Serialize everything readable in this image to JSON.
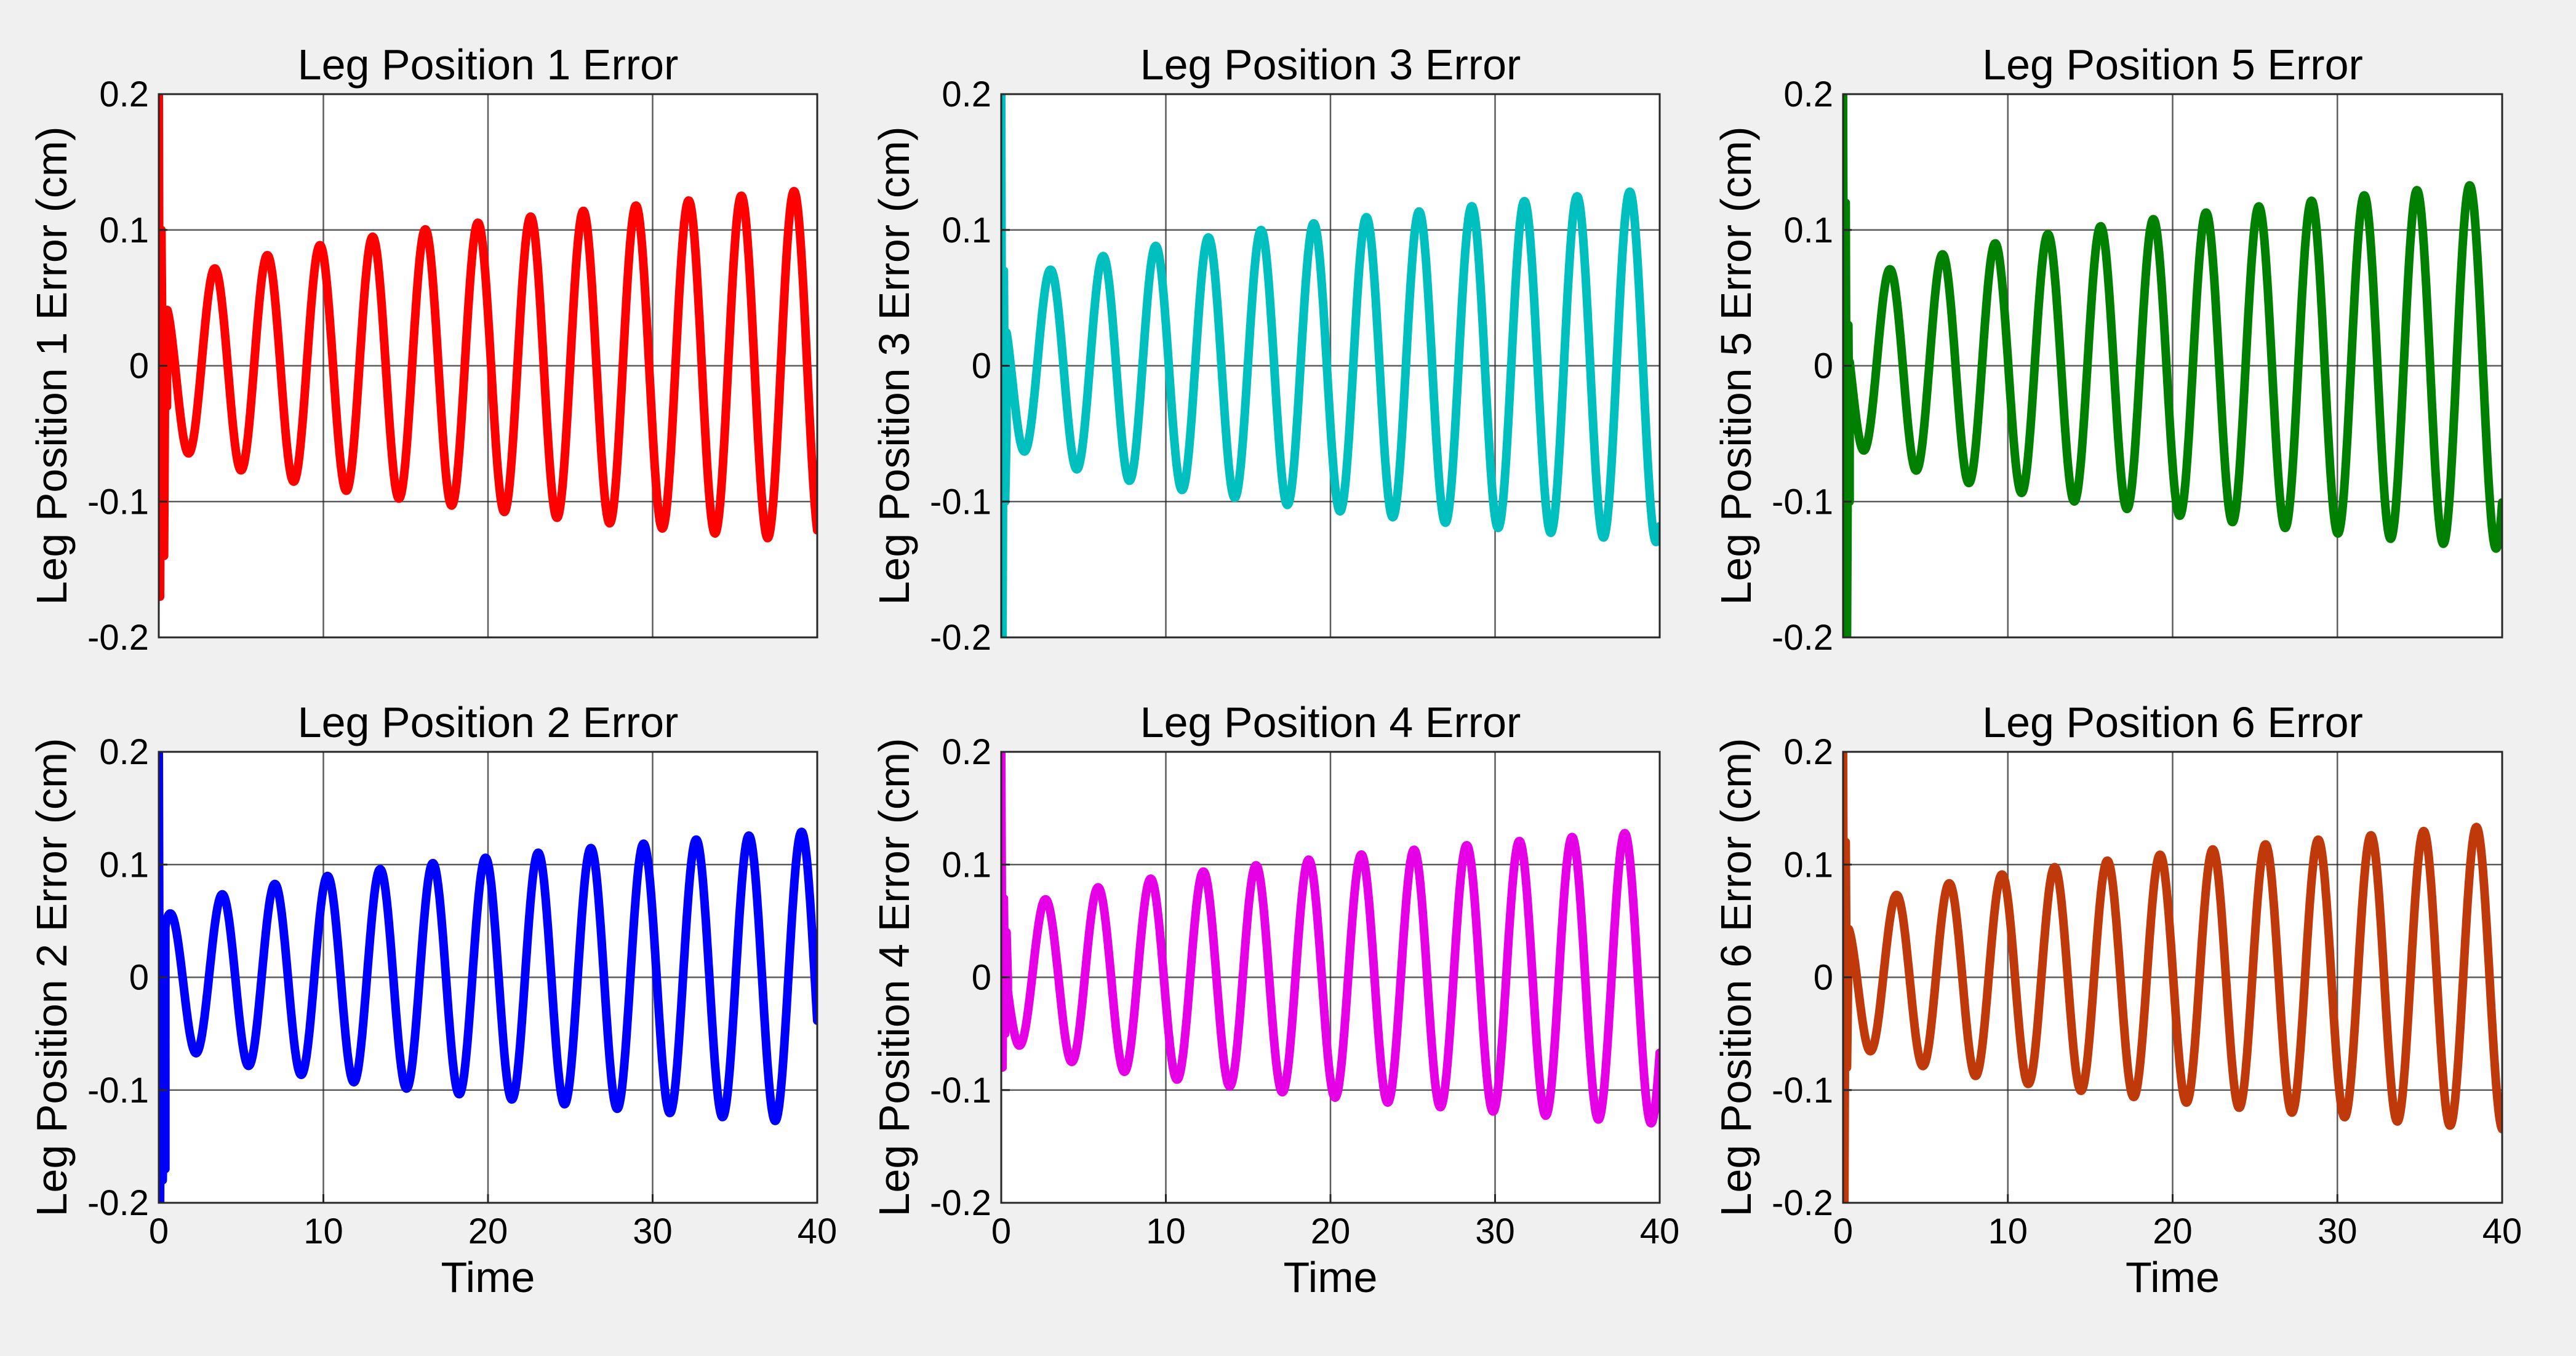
{
  "figure": {
    "background_color": "#f0f0f0",
    "axes_background_color": "#ffffff",
    "grid_color": "#262626",
    "axis_color": "#262626"
  },
  "chart_data": [
    {
      "type": "line",
      "title": "Leg Position 1 Error",
      "xlabel": "",
      "ylabel": "Leg Position 1 Error (cm)",
      "xlim": [
        0,
        40
      ],
      "ylim": [
        -0.2,
        0.2
      ],
      "xticks": [],
      "xtick_labels": [],
      "yticks": [
        -0.2,
        -0.1,
        0,
        0.1,
        0.2
      ],
      "ytick_labels": [
        "-0.2",
        "-0.1",
        "0",
        "0.1",
        "0.2"
      ],
      "grid": true,
      "color": "#ff0000",
      "series": [
        {
          "name": "Leg Position 1 Error",
          "transient": [
            [
              0,
              0.2
            ],
            [
              0.08,
              -0.17
            ],
            [
              0.16,
              0.1
            ],
            [
              0.24,
              -0.02
            ],
            [
              0.32,
              -0.14
            ],
            [
              0.4,
              0.03
            ],
            [
              0.5,
              -0.03
            ]
          ],
          "signal": {
            "start": 0.5,
            "end": 40,
            "center": 0,
            "amp_start": 0.05,
            "amp_end": 0.13,
            "period": 3.2,
            "phase": 1.2
          }
        }
      ]
    },
    {
      "type": "line",
      "title": "Leg Position 3 Error",
      "xlabel": "",
      "ylabel": "Leg Position 3 Error (cm)",
      "xlim": [
        0,
        40
      ],
      "ylim": [
        -0.2,
        0.2
      ],
      "xticks": [],
      "xtick_labels": [],
      "yticks": [
        -0.2,
        -0.1,
        0,
        0.1,
        0.2
      ],
      "ytick_labels": [
        "-0.2",
        "-0.1",
        "0",
        "0.1",
        "0.2"
      ],
      "grid": true,
      "color": "#00bfbf",
      "series": [
        {
          "name": "Leg Position 3 Error",
          "transient": [
            [
              0,
              0.2
            ],
            [
              0.08,
              -0.2
            ],
            [
              0.16,
              0.07
            ],
            [
              0.24,
              -0.1
            ],
            [
              0.32,
              -0.05
            ]
          ],
          "signal": {
            "start": 0.32,
            "end": 40,
            "center": 0,
            "amp_start": 0.05,
            "amp_end": 0.13,
            "period": 3.2,
            "phase": 2.0
          }
        }
      ]
    },
    {
      "type": "line",
      "title": "Leg Position 5 Error",
      "xlabel": "",
      "ylabel": "Leg Position 5 Error (cm)",
      "xlim": [
        0,
        40
      ],
      "ylim": [
        -0.2,
        0.2
      ],
      "xticks": [],
      "xtick_labels": [],
      "yticks": [
        -0.2,
        -0.1,
        0,
        0.1,
        0.2
      ],
      "ytick_labels": [
        "-0.2",
        "-0.1",
        "0",
        "0.1",
        "0.2"
      ],
      "grid": true,
      "color": "#008000",
      "series": [
        {
          "name": "Leg Position 5 Error",
          "transient": [
            [
              0,
              0.2
            ],
            [
              0.08,
              -0.2
            ],
            [
              0.16,
              0.12
            ],
            [
              0.24,
              -0.2
            ],
            [
              0.32,
              0.03
            ],
            [
              0.4,
              -0.1
            ]
          ],
          "signal": {
            "start": 0.4,
            "end": 40,
            "center": 0,
            "amp_start": 0.05,
            "amp_end": 0.135,
            "period": 3.2,
            "phase": 2.3
          }
        }
      ]
    },
    {
      "type": "line",
      "title": "Leg Position 2 Error",
      "xlabel": "Time",
      "ylabel": "Leg Position 2 Error (cm)",
      "xlim": [
        0,
        40
      ],
      "ylim": [
        -0.2,
        0.2
      ],
      "xticks": [
        0,
        10,
        20,
        30,
        40
      ],
      "xtick_labels": [
        "0",
        "10",
        "20",
        "30",
        "40"
      ],
      "yticks": [
        -0.2,
        -0.1,
        0,
        0.1,
        0.2
      ],
      "ytick_labels": [
        "-0.2",
        "-0.1",
        "0",
        "0.1",
        "0.2"
      ],
      "grid": true,
      "color": "#0000ff",
      "series": [
        {
          "name": "Leg Position 2 Error",
          "transient": [
            [
              0,
              0.2
            ],
            [
              0.08,
              -0.2
            ],
            [
              0.16,
              0.02
            ],
            [
              0.24,
              -0.18
            ],
            [
              0.32,
              -0.12
            ],
            [
              0.4,
              -0.17
            ]
          ],
          "signal": {
            "start": 0.4,
            "end": 40,
            "center": 0,
            "amp_start": 0.05,
            "amp_end": 0.13,
            "period": 3.2,
            "phase": 0.3
          }
        }
      ]
    },
    {
      "type": "line",
      "title": "Leg Position 4 Error",
      "xlabel": "Time",
      "ylabel": "Leg Position 4 Error (cm)",
      "xlim": [
        0,
        40
      ],
      "ylim": [
        -0.2,
        0.2
      ],
      "xticks": [
        0,
        10,
        20,
        30,
        40
      ],
      "xtick_labels": [
        "0",
        "10",
        "20",
        "30",
        "40"
      ],
      "yticks": [
        -0.2,
        -0.1,
        0,
        0.1,
        0.2
      ],
      "ytick_labels": [
        "-0.2",
        "-0.1",
        "0",
        "0.1",
        "0.2"
      ],
      "grid": true,
      "color": "#e600e6",
      "series": [
        {
          "name": "Leg Position 4 Error",
          "transient": [
            [
              0,
              0.2
            ],
            [
              0.08,
              -0.08
            ],
            [
              0.16,
              0.07
            ],
            [
              0.24,
              -0.05
            ],
            [
              0.32,
              0.04
            ],
            [
              0.4,
              0.0
            ]
          ],
          "signal": {
            "start": 0.4,
            "end": 40,
            "center": 0,
            "amp_start": 0.05,
            "amp_end": 0.13,
            "period": 3.2,
            "phase": 2.6
          }
        }
      ]
    },
    {
      "type": "line",
      "title": "Leg Position 6 Error",
      "xlabel": "Time",
      "ylabel": "Leg Position 6 Error (cm)",
      "xlim": [
        0,
        40
      ],
      "ylim": [
        -0.2,
        0.2
      ],
      "xticks": [
        0,
        10,
        20,
        30,
        40
      ],
      "xtick_labels": [
        "0",
        "10",
        "20",
        "30",
        "40"
      ],
      "yticks": [
        -0.2,
        -0.1,
        0,
        0.1,
        0.2
      ],
      "ytick_labels": [
        "-0.2",
        "-0.1",
        "0",
        "0.1",
        "0.2"
      ],
      "grid": true,
      "color": "#c0390b",
      "series": [
        {
          "name": "Leg Position 6 Error",
          "transient": [
            [
              0,
              0.2
            ],
            [
              0.08,
              -0.2
            ],
            [
              0.16,
              0.12
            ],
            [
              0.24,
              -0.08
            ],
            [
              0.32,
              0.02
            ]
          ],
          "signal": {
            "start": 0.32,
            "end": 40,
            "center": 0,
            "amp_start": 0.05,
            "amp_end": 0.135,
            "period": 3.2,
            "phase": 1.5
          }
        }
      ]
    }
  ]
}
